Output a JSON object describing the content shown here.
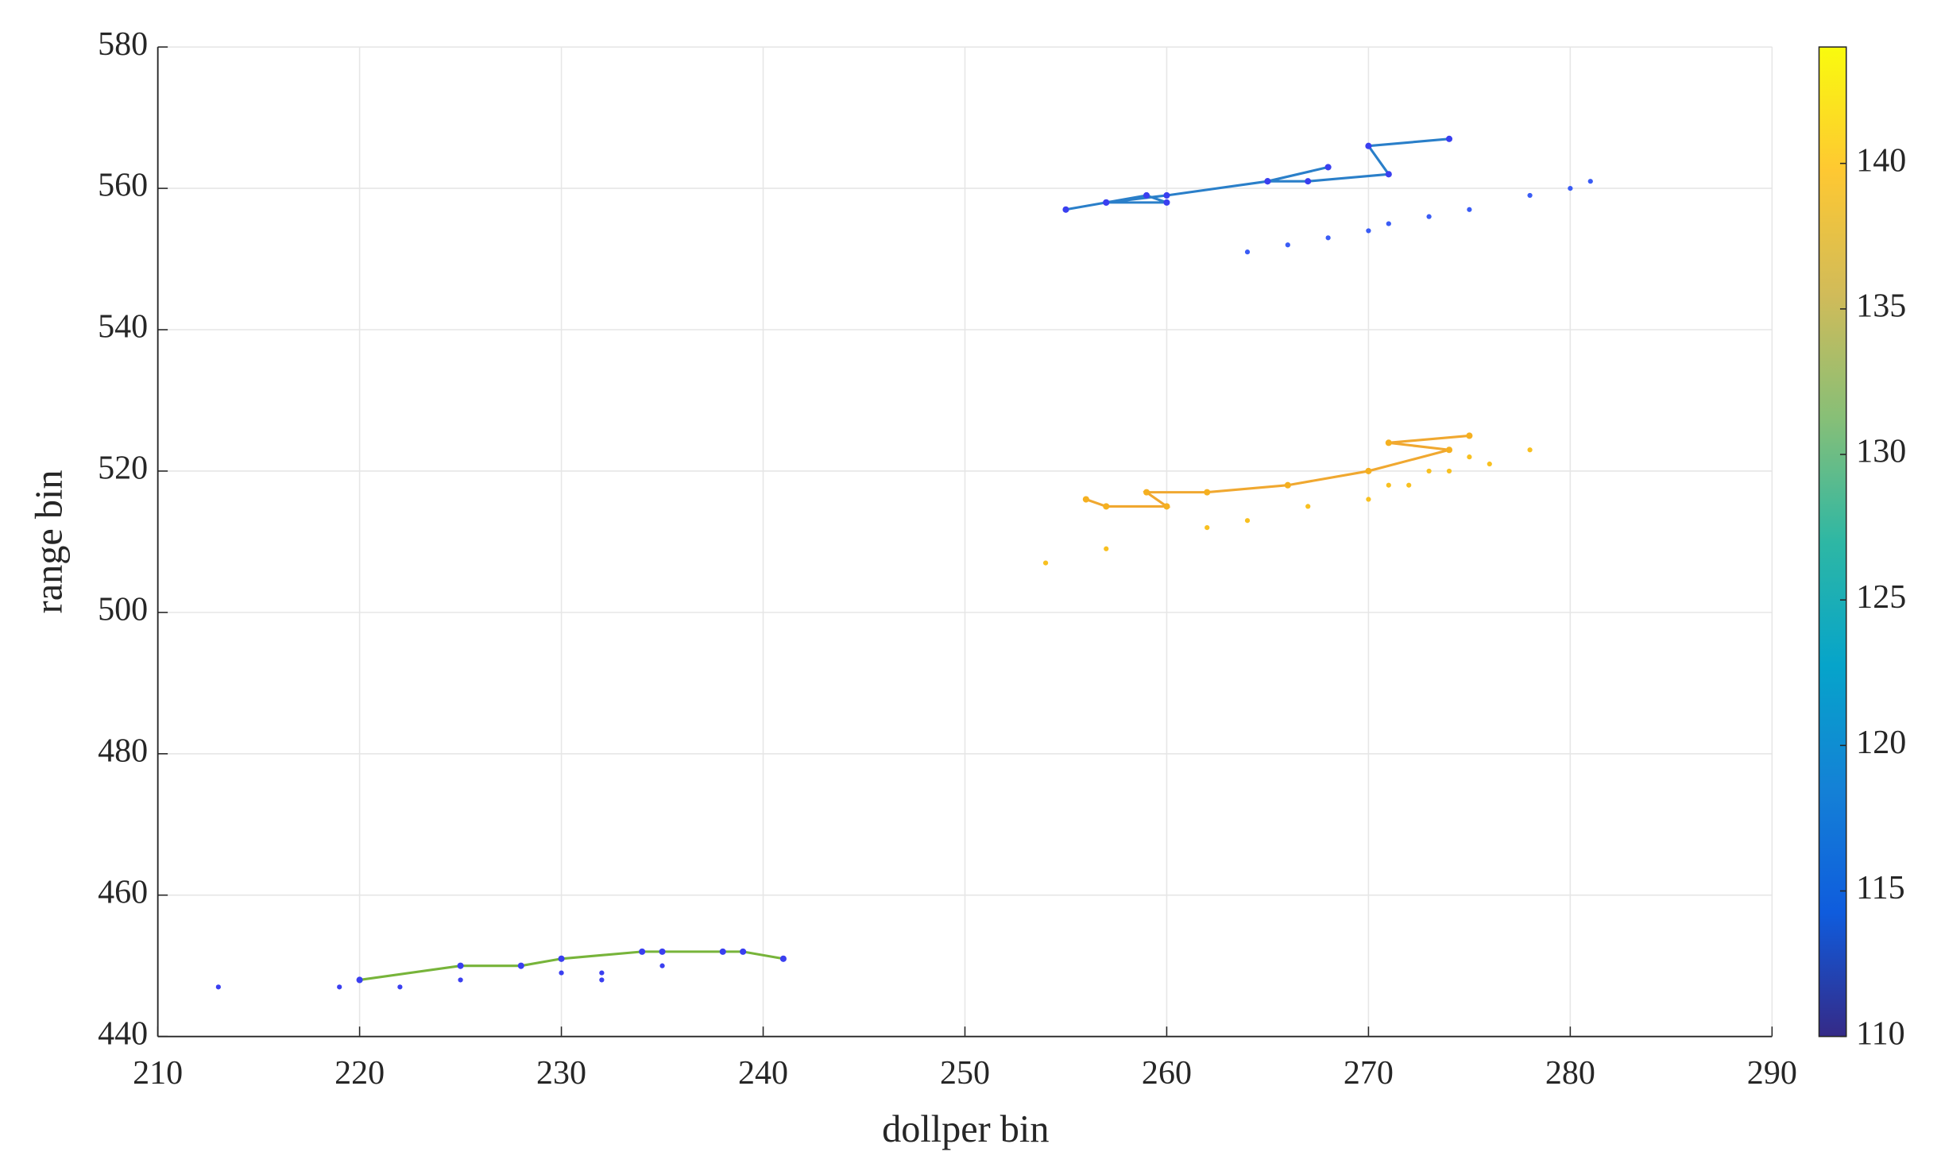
{
  "chart_data": {
    "type": "scatter",
    "x_label": "dollper bin",
    "y_label": "range bin",
    "xlim": [
      210,
      290
    ],
    "xticks": [
      210,
      220,
      230,
      240,
      250,
      260,
      270,
      280,
      290
    ],
    "ylim": [
      440,
      580
    ],
    "yticks": [
      440,
      460,
      480,
      500,
      520,
      540,
      560,
      580
    ],
    "grid": true,
    "series": [
      {
        "mode": "lines",
        "color": "#2a7fc9",
        "marker_color": "#3a3ff0",
        "x": [
          255,
          257,
          259,
          260,
          257,
          260,
          265,
          268,
          265,
          267,
          271,
          270,
          274
        ],
        "values": [
          557,
          558,
          559,
          558,
          558,
          559,
          561,
          563,
          561,
          561,
          562,
          566,
          567
        ]
      },
      {
        "mode": "markers",
        "color": "#3a5cf5",
        "x": [
          264,
          266,
          268,
          270,
          271,
          273,
          275,
          278,
          280,
          281
        ],
        "values": [
          551,
          552,
          553,
          554,
          555,
          556,
          557,
          559,
          560,
          561
        ]
      },
      {
        "mode": "lines",
        "color": "#f0a830",
        "marker_color": "#f5b020",
        "x": [
          256,
          257,
          260,
          259,
          262,
          266,
          270,
          274,
          271,
          275
        ],
        "values": [
          516,
          515,
          515,
          517,
          517,
          518,
          520,
          523,
          524,
          525
        ]
      },
      {
        "mode": "markers",
        "color": "#f8c020",
        "x": [
          254,
          257,
          262,
          264,
          267,
          270,
          271,
          272,
          273,
          274,
          275,
          276,
          278
        ],
        "values": [
          507,
          509,
          512,
          513,
          515,
          516,
          518,
          518,
          520,
          520,
          522,
          521,
          523
        ]
      },
      {
        "mode": "lines",
        "color": "#77b43a",
        "marker_color": "#3a3ff0",
        "x": [
          220,
          225,
          228,
          230,
          234,
          235,
          238,
          239,
          241
        ],
        "values": [
          448,
          450,
          450,
          451,
          452,
          452,
          452,
          452,
          451
        ]
      },
      {
        "mode": "markers",
        "color": "#3a3ff0",
        "x": [
          213,
          219,
          222,
          225,
          228,
          230,
          232,
          232,
          235
        ],
        "values": [
          447,
          447,
          447,
          448,
          450,
          449,
          449,
          448,
          450
        ]
      }
    ],
    "colorbar": {
      "lim": [
        110,
        144
      ],
      "ticks": [
        110,
        115,
        120,
        125,
        130,
        135,
        140
      ],
      "colors": [
        "#352a87",
        "#0f5cdd",
        "#1481d6",
        "#06a4ca",
        "#2eb7a4",
        "#87bf77",
        "#d1bb59",
        "#fec832",
        "#f9fb0e"
      ]
    }
  }
}
